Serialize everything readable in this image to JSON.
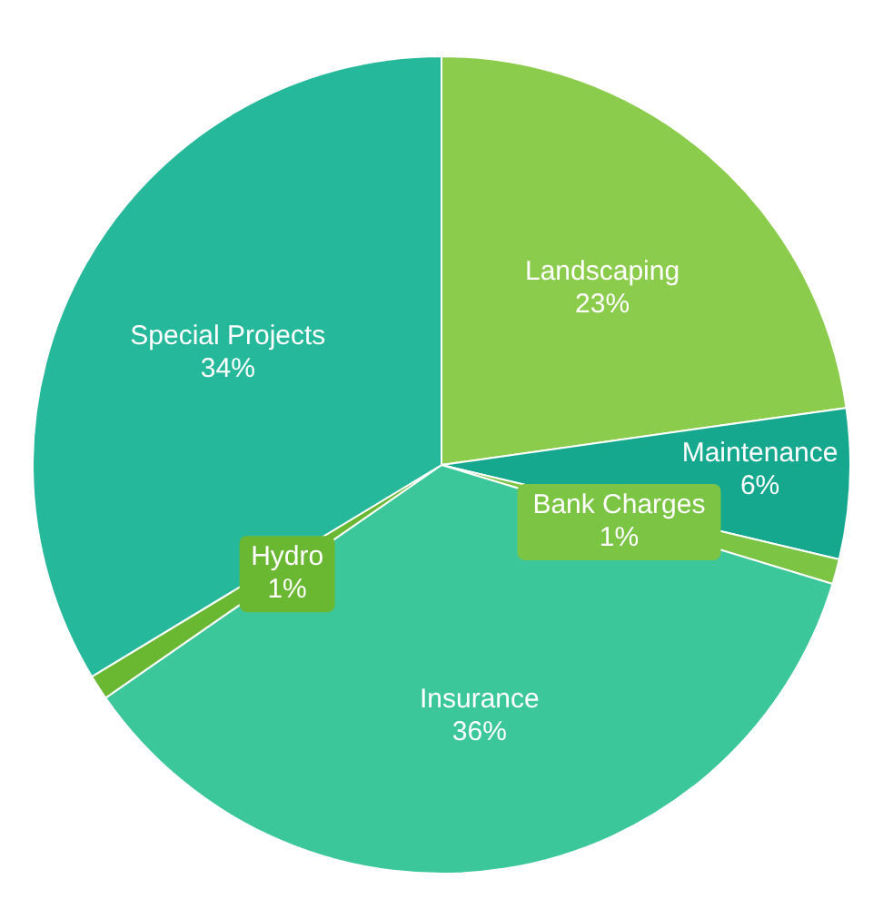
{
  "chart_data": {
    "type": "pie",
    "categories": [
      "Landscaping",
      "Maintenance",
      "Bank Charges",
      "Insurance",
      "Hydro",
      "Special Projects"
    ],
    "values": [
      23,
      6,
      1,
      36,
      1,
      34
    ],
    "value_labels": [
      "23%",
      "6%",
      "1%",
      "36%",
      "1%",
      "34%"
    ],
    "colors": [
      "#8ccc4c",
      "#16a88e",
      "#7cc444",
      "#3cc79a",
      "#6ab832",
      "#26b89a"
    ]
  }
}
